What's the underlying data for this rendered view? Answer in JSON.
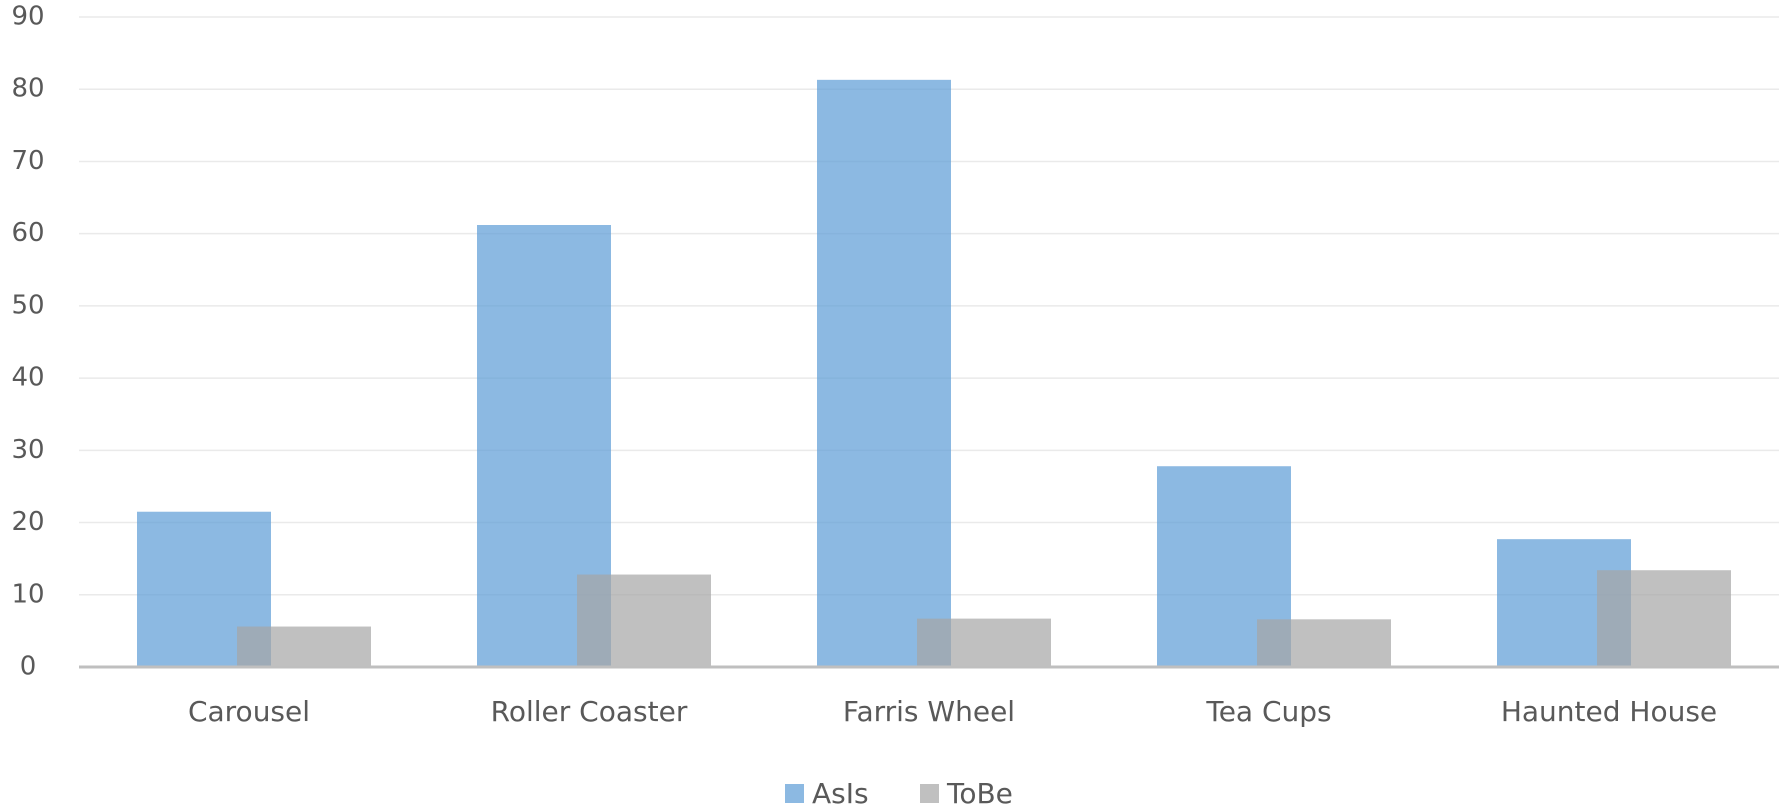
{
  "chart_data": {
    "type": "bar",
    "categories": [
      "Carousel",
      "Roller Coaster",
      "Farris Wheel",
      "Tea Cups",
      "Haunted House"
    ],
    "series": [
      {
        "name": "AsIs",
        "values": [
          21.5,
          61.2,
          81.3,
          27.8,
          17.7
        ],
        "color": "#5b9bd5"
      },
      {
        "name": "ToBe",
        "values": [
          5.6,
          12.8,
          6.7,
          6.6,
          13.4
        ],
        "color": "#a5a5a5"
      }
    ],
    "ylim": [
      0,
      90
    ],
    "yticks": [
      0,
      10,
      20,
      30,
      40,
      50,
      60,
      70,
      80,
      90
    ],
    "yticks_text": [
      "0",
      "10",
      "20",
      "30",
      "40",
      "50",
      "60",
      "70",
      "80",
      "90"
    ],
    "grid": true,
    "legend_position": "bottom"
  }
}
